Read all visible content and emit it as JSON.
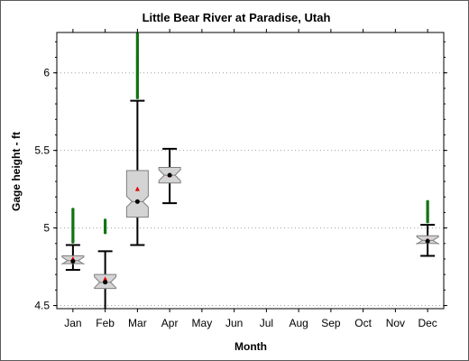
{
  "chart_data": {
    "type": "box",
    "title": "Little Bear River at Paradise, Utah",
    "xlabel": "Month",
    "ylabel": "Gage height - ft",
    "ylim": [
      4.48,
      6.26
    ],
    "yticks": [
      "4.5",
      "5",
      "5.5",
      "6"
    ],
    "grid": true,
    "categories": [
      "Jan",
      "Feb",
      "Mar",
      "Apr",
      "May",
      "Jun",
      "Jul",
      "Aug",
      "Sep",
      "Oct",
      "Nov",
      "Dec"
    ],
    "boxes": [
      {
        "month": "Jan",
        "whisker_low": 4.73,
        "q1": 4.77,
        "median": 4.79,
        "q3": 4.82,
        "whisker_high": 4.89,
        "mean": 4.8,
        "median_dot": 4.785,
        "outliers_high": [
          4.91,
          5.12
        ]
      },
      {
        "month": "Feb",
        "whisker_low": 4.47,
        "q1": 4.61,
        "median": 4.65,
        "q3": 4.7,
        "whisker_high": 4.85,
        "mean": 4.67,
        "median_dot": 4.65,
        "outliers_high": [
          4.97,
          5.05
        ]
      },
      {
        "month": "Mar",
        "whisker_low": 4.89,
        "q1": 5.07,
        "median": 5.17,
        "q3": 5.37,
        "whisker_high": 5.82,
        "mean": 5.25,
        "median_dot": 5.17,
        "outliers_high": [
          5.84,
          6.26
        ]
      },
      {
        "month": "Apr",
        "whisker_low": 5.16,
        "q1": 5.29,
        "median": 5.34,
        "q3": 5.39,
        "whisker_high": 5.51,
        "mean": 5.34,
        "median_dot": 5.34,
        "outliers_high": []
      },
      {
        "month": "Dec",
        "whisker_low": 4.82,
        "q1": 4.9,
        "median": 4.92,
        "q3": 4.95,
        "whisker_high": 5.02,
        "mean": 4.92,
        "median_dot": 4.915,
        "outliers_high": [
          5.04,
          5.17
        ]
      }
    ],
    "colors": {
      "box_fill": "#d4d4d4",
      "box_stroke": "#7f7f7f",
      "whisker": "#000000",
      "outlier": "#127312",
      "mean": "#e00000",
      "median_point": "#000000",
      "grid": "#a0a0a0"
    }
  }
}
